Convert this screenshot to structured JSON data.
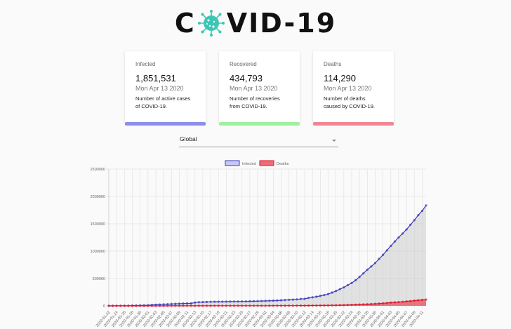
{
  "header": {
    "title_prefix": "C",
    "title_suffix": "VID-19",
    "logo_icon": "virus-icon",
    "logo_color": "#3cc7b4"
  },
  "cards": [
    {
      "label": "Infected",
      "value": "1,851,531",
      "date": "Mon Apr 13 2020",
      "description": "Number of active cases of COVID-19.",
      "color": "#8b8eea"
    },
    {
      "label": "Recovered",
      "value": "434,793",
      "date": "Mon Apr 13 2020",
      "description": "Number of recoveries from COVID-19.",
      "color": "#9ef09e"
    },
    {
      "label": "Deaths",
      "value": "114,290",
      "date": "Mon Apr 13 2020",
      "description": "Number of deaths caused by COVID-19.",
      "color": "#f0878f"
    }
  ],
  "country_select": {
    "value": "Global"
  },
  "chart_data": {
    "type": "line",
    "title": "",
    "xlabel": "",
    "ylabel": "",
    "ylim": [
      0,
      2500000
    ],
    "yticks": [
      0,
      500000,
      1000000,
      1500000,
      2000000,
      2500000
    ],
    "grid": true,
    "legend_position": "top",
    "fill": true,
    "x": [
      "2020-01-22",
      "2020-01-23",
      "2020-01-24",
      "2020-01-25",
      "2020-01-26",
      "2020-01-27",
      "2020-01-28",
      "2020-01-29",
      "2020-01-30",
      "2020-01-31",
      "2020-02-01",
      "2020-02-02",
      "2020-02-03",
      "2020-02-04",
      "2020-02-05",
      "2020-02-06",
      "2020-02-07",
      "2020-02-08",
      "2020-02-09",
      "2020-02-10",
      "2020-02-11",
      "2020-02-12",
      "2020-02-13",
      "2020-02-14",
      "2020-02-15",
      "2020-02-16",
      "2020-02-17",
      "2020-02-18",
      "2020-02-19",
      "2020-02-20",
      "2020-02-21",
      "2020-02-22",
      "2020-02-23",
      "2020-02-24",
      "2020-02-25",
      "2020-02-26",
      "2020-02-27",
      "2020-02-28",
      "2020-02-29",
      "2020-03-01",
      "2020-03-02",
      "2020-03-03",
      "2020-03-04",
      "2020-03-05",
      "2020-03-06",
      "2020-03-07",
      "2020-03-08",
      "2020-03-09",
      "2020-03-10",
      "2020-03-11",
      "2020-03-12",
      "2020-03-13",
      "2020-03-14",
      "2020-03-15",
      "2020-03-16",
      "2020-03-17",
      "2020-03-18",
      "2020-03-19",
      "2020-03-20",
      "2020-03-21",
      "2020-03-22",
      "2020-03-23",
      "2020-03-24",
      "2020-03-25",
      "2020-03-26",
      "2020-03-27",
      "2020-03-28",
      "2020-03-29",
      "2020-03-30",
      "2020-03-31",
      "2020-04-01",
      "2020-04-02",
      "2020-04-03",
      "2020-04-04",
      "2020-04-05",
      "2020-04-06",
      "2020-04-07",
      "2020-04-08",
      "2020-04-09",
      "2020-04-10",
      "2020-04-11",
      "2020-04-12"
    ],
    "xtick_labels": [
      "2020-01-22",
      "2020-01-24",
      "2020-01-26",
      "2020-01-28",
      "2020-01-30",
      "2020-02-01",
      "2020-02-03",
      "2020-02-05",
      "2020-02-07",
      "2020-02-09",
      "2020-02-11",
      "2020-02-13",
      "2020-02-15",
      "2020-02-17",
      "2020-02-19",
      "2020-02-21",
      "2020-02-23",
      "2020-02-25",
      "2020-02-27",
      "2020-02-29",
      "2020-03-02",
      "2020-03-04",
      "2020-03-06",
      "2020-03-08",
      "2020-03-10",
      "2020-03-12",
      "2020-03-14",
      "2020-03-16",
      "2020-03-18",
      "2020-03-20",
      "2020-03-22",
      "2020-03-24",
      "2020-03-26",
      "2020-03-28",
      "2020-03-30",
      "2020-04-01",
      "2020-04-03",
      "2020-04-05",
      "2020-04-07",
      "2020-04-09",
      "2020-04-11"
    ],
    "series": [
      {
        "name": "Infected",
        "line_color": "#3b3bbf",
        "fill_color": "rgba(200,200,200,0.5)",
        "legend_fill": "#c8c8f0",
        "values": [
          555,
          654,
          941,
          1434,
          2118,
          2927,
          5578,
          6166,
          8234,
          9927,
          12038,
          16787,
          19881,
          23892,
          27635,
          30794,
          34391,
          37120,
          40150,
          42762,
          44802,
          45221,
          60368,
          66885,
          69030,
          71224,
          73258,
          75136,
          75639,
          76197,
          76819,
          78572,
          78958,
          79561,
          80406,
          81388,
          82746,
          84112,
          86011,
          88369,
          90306,
          92840,
          95120,
          97886,
          101801,
          105847,
          109821,
          113590,
          118620,
          125875,
          128352,
          145205,
          156101,
          167454,
          181574,
          197102,
          214821,
          242570,
          272208,
          304507,
          336953,
          378235,
          418045,
          467653,
          529591,
          593291,
          660706,
          720117,
          782365,
          857487,
          932605,
          1013466,
          1095917,
          1176060,
          1249754,
          1321481,
          1396476,
          1480202,
          1565278,
          1657526,
          1735650,
          1834721
        ]
      },
      {
        "name": "Deaths",
        "line_color": "#d9182b",
        "fill_color": "rgba(232,80,92,0.75)",
        "legend_fill": "#f06b76",
        "values": [
          17,
          18,
          26,
          42,
          56,
          82,
          131,
          133,
          171,
          213,
          259,
          362,
          426,
          492,
          564,
          634,
          719,
          806,
          906,
          1013,
          1113,
          1118,
          1371,
          1523,
          1666,
          1770,
          1868,
          2007,
          2122,
          2247,
          2251,
          2458,
          2469,
          2629,
          2708,
          2770,
          2814,
          2872,
          2941,
          2996,
          3085,
          3160,
          3254,
          3348,
          3460,
          3558,
          3802,
          3988,
          4262,
          4615,
          4720,
          5404,
          5819,
          6440,
          7126,
          7905,
          8733,
          9867,
          11299,
          12973,
          14623,
          16497,
          18615,
          21181,
          23970,
          27198,
          30652,
          33925,
          37582,
          42107,
          46809,
          52983,
          58787,
          64606,
          69374,
          74565,
          81865,
          88338,
          95455,
          102525,
          108503,
          114090
        ]
      }
    ]
  }
}
